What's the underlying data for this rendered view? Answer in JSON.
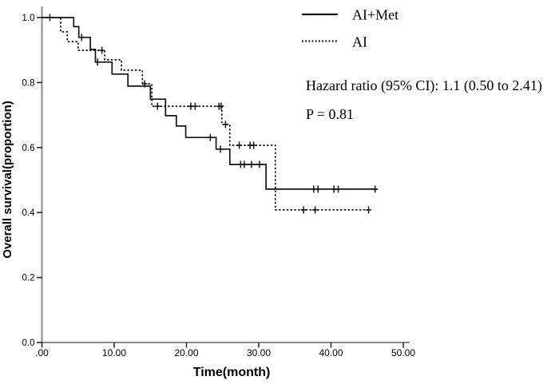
{
  "figure": {
    "annotations": {
      "hazard_ratio": "Hazard ratio (95% CI): 1.1 (0.50 to 2.41)",
      "p_value": "P = 0.81"
    }
  },
  "chart_data": {
    "type": "line",
    "subtype": "kaplan_meier_step",
    "title": "",
    "xlabel": "Time(month)",
    "ylabel": "Overall survival(proportion)",
    "xlim": [
      0,
      52
    ],
    "ylim": [
      0,
      1.0
    ],
    "grid": false,
    "legend_position": "top-right",
    "x_ticks": {
      "values": [
        0,
        10,
        20,
        30,
        40,
        50
      ],
      "labels": [
        ".00",
        "10.00",
        "20.00",
        "30.00",
        "40.00",
        "50.00"
      ]
    },
    "y_ticks": {
      "values": [
        0,
        0.2,
        0.4,
        0.6,
        0.8,
        1.0
      ],
      "labels": [
        "0.0",
        "0.2",
        "0.4",
        "0.6",
        "0.8",
        "1.0"
      ]
    },
    "colors": {
      "curve": "#141414",
      "axis": "#8a8a8a",
      "tick": "#2b2b2b",
      "text": "#000000"
    },
    "series": [
      {
        "name": "AI+Met",
        "line_style": "solid",
        "steps": [
          [
            0,
            1.0
          ],
          [
            4.4,
            0.972
          ],
          [
            5.1,
            0.939
          ],
          [
            6.7,
            0.902
          ],
          [
            7.4,
            0.863
          ],
          [
            9.7,
            0.826
          ],
          [
            11.9,
            0.789
          ],
          [
            15.0,
            0.749
          ],
          [
            17.1,
            0.698
          ],
          [
            18.6,
            0.666
          ],
          [
            19.9,
            0.631
          ],
          [
            24.1,
            0.595
          ],
          [
            26.0,
            0.548
          ],
          [
            31.0,
            0.472
          ]
        ],
        "end_time": 46.4,
        "censors": [
          [
            1.1,
            1.0
          ],
          [
            5.5,
            0.939
          ],
          [
            7.7,
            0.863
          ],
          [
            23.3,
            0.631
          ],
          [
            24.7,
            0.595
          ],
          [
            27.5,
            0.548
          ],
          [
            28.0,
            0.548
          ],
          [
            29.0,
            0.548
          ],
          [
            30.1,
            0.548
          ],
          [
            37.6,
            0.472
          ],
          [
            38.2,
            0.472
          ],
          [
            40.4,
            0.472
          ],
          [
            41.0,
            0.472
          ],
          [
            46.1,
            0.472
          ]
        ]
      },
      {
        "name": "AI",
        "line_style": "dotted",
        "steps": [
          [
            0,
            1.0
          ],
          [
            2.6,
            0.956
          ],
          [
            3.5,
            0.926
          ],
          [
            5.0,
            0.899
          ],
          [
            8.7,
            0.87
          ],
          [
            11.0,
            0.838
          ],
          [
            13.9,
            0.796
          ],
          [
            15.2,
            0.727
          ],
          [
            24.9,
            0.671
          ],
          [
            26.0,
            0.607
          ],
          [
            32.3,
            0.408
          ]
        ],
        "end_time": 45.4,
        "censors": [
          [
            8.3,
            0.899
          ],
          [
            14.2,
            0.796
          ],
          [
            16.0,
            0.727
          ],
          [
            20.6,
            0.727
          ],
          [
            21.2,
            0.727
          ],
          [
            24.5,
            0.727
          ],
          [
            24.8,
            0.727
          ],
          [
            25.4,
            0.671
          ],
          [
            27.3,
            0.607
          ],
          [
            28.8,
            0.607
          ],
          [
            29.3,
            0.607
          ],
          [
            36.2,
            0.408
          ],
          [
            37.8,
            0.408
          ],
          [
            45.2,
            0.408
          ]
        ]
      }
    ]
  }
}
